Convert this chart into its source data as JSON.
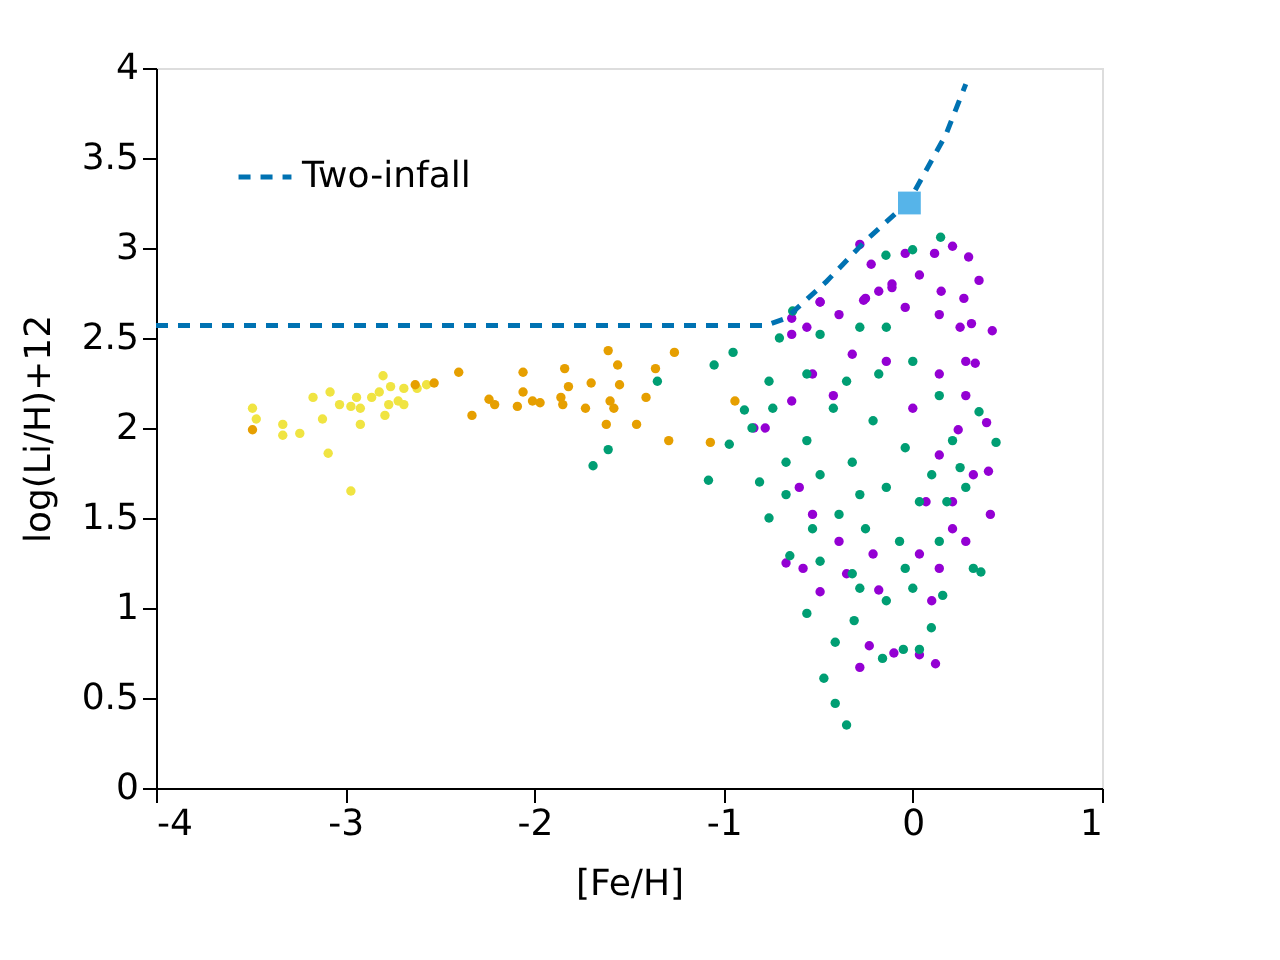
{
  "chart_data": {
    "type": "scatter",
    "xlabel": "[Fe/H]",
    "ylabel": "log(Li/H)+12",
    "xlim": [
      -4,
      1
    ],
    "xticks": [
      -4,
      -3,
      -2,
      -1,
      0,
      1
    ],
    "ylim": [
      0,
      4
    ],
    "yticks": [
      0,
      0.5,
      1,
      1.5,
      2,
      2.5,
      3,
      3.5,
      4
    ],
    "grid": false,
    "legend": "top left",
    "series": [
      {
        "marker": "circle",
        "color": "#f0e442",
        "x": [
          -3.49,
          -3.47,
          -3.33,
          -3.33,
          -3.24,
          -3.17,
          -3.12,
          -3.08,
          -3.09,
          -3.03,
          -2.97,
          -2.97,
          -2.94,
          -2.92,
          -2.92,
          -2.86,
          -2.82,
          -2.8,
          -2.79,
          -2.77,
          -2.76,
          -2.72,
          -2.69,
          -2.69,
          -2.62,
          -2.57
        ],
        "values": [
          2.11,
          2.05,
          2.02,
          1.96,
          1.97,
          2.17,
          2.05,
          2.2,
          1.86,
          2.13,
          1.65,
          2.12,
          2.17,
          2.11,
          2.02,
          2.17,
          2.2,
          2.29,
          2.07,
          2.13,
          2.23,
          2.15,
          2.22,
          2.13,
          2.22,
          2.24
        ]
      },
      {
        "marker": "circle",
        "color": "#e69f00",
        "x": [
          -3.49,
          -2.63,
          -2.53,
          -2.4,
          -2.33,
          -2.24,
          -2.21,
          -2.09,
          -2.06,
          -2.06,
          -2.01,
          -1.97,
          -1.86,
          -1.85,
          -1.84,
          -1.82,
          -1.73,
          -1.7,
          -1.62,
          -1.61,
          -1.6,
          -1.58,
          -1.56,
          -1.55,
          -1.46,
          -1.41,
          -1.36,
          -1.29,
          -1.26,
          -1.07,
          -0.94
        ],
        "values": [
          1.99,
          2.24,
          2.25,
          2.31,
          2.07,
          2.16,
          2.13,
          2.12,
          2.31,
          2.2,
          2.15,
          2.14,
          2.17,
          2.13,
          2.33,
          2.23,
          2.11,
          2.25,
          2.02,
          2.43,
          2.15,
          2.11,
          2.35,
          2.24,
          2.02,
          2.17,
          2.33,
          1.93,
          2.42,
          1.92,
          2.15
        ]
      },
      {
        "marker": "circle",
        "color": "#9400d3",
        "x": [
          -0.28,
          -0.22,
          -0.04,
          0.115,
          0.21,
          0.295,
          0.35,
          0.42,
          0.33,
          -0.49,
          -0.26,
          -0.18,
          -0.11,
          0.15,
          0.27,
          0.31,
          -0.64,
          -0.56,
          0.39,
          0.4,
          0.41,
          0.28,
          -0.67,
          -0.58,
          -0.49,
          -0.35,
          -0.23,
          -0.28,
          -0.1,
          0.035,
          0.12,
          -0.18,
          0.1,
          0.21,
          -0.84,
          -0.64,
          -0.39,
          -0.04,
          0.14,
          0.25,
          0.28,
          0.14,
          -0.14,
          -0.32,
          -0.53,
          -0.64,
          -0.42,
          0.0,
          0.28,
          0.24,
          0.32,
          0.14,
          0.07,
          0.21,
          -0.6,
          -0.53,
          -0.21,
          0.035,
          0.14,
          -0.39,
          -0.78,
          0.035,
          -0.11,
          -0.25,
          -0.49
        ],
        "values": [
          3.02,
          2.91,
          2.97,
          2.97,
          3.01,
          2.95,
          2.82,
          2.54,
          2.36,
          2.7,
          2.71,
          2.76,
          2.8,
          2.76,
          2.72,
          2.58,
          2.61,
          2.56,
          2.03,
          1.76,
          1.52,
          1.37,
          1.25,
          1.22,
          1.09,
          1.19,
          0.79,
          0.67,
          0.75,
          0.74,
          0.69,
          1.1,
          1.04,
          1.44,
          2.0,
          2.52,
          2.63,
          2.67,
          2.63,
          2.56,
          2.37,
          2.3,
          2.37,
          2.41,
          2.3,
          2.15,
          2.18,
          2.11,
          2.18,
          1.99,
          1.74,
          1.85,
          1.59,
          1.59,
          1.67,
          1.52,
          1.3,
          1.3,
          1.22,
          1.37,
          2.0,
          2.85,
          2.78,
          2.72,
          2.7
        ]
      },
      {
        "marker": "circle",
        "color": "#009e73",
        "x": [
          -1.69,
          -1.61,
          -1.35,
          -1.05,
          -0.95,
          -1.08,
          -0.97,
          0.147,
          -0.142,
          -0.001,
          -0.635,
          -0.705,
          -0.76,
          -0.89,
          0.44,
          0.35,
          0.32,
          0.36,
          -0.47,
          -0.41,
          -0.35,
          -0.41,
          -0.56,
          -0.31,
          -0.16,
          -0.05,
          0.035,
          0.098,
          0.158,
          -0.65,
          -0.76,
          -0.81,
          -0.85,
          -0.67,
          -0.49,
          -0.28,
          -0.14,
          0.0,
          0.14,
          0.28,
          0.21,
          0.14,
          0.0,
          -0.14,
          -0.28,
          -0.49,
          -0.56,
          -0.42,
          -0.21,
          -0.04,
          -0.32,
          -0.49,
          -0.14,
          0.035,
          -0.39,
          -0.25,
          -0.07,
          -0.56,
          -0.67,
          -0.74,
          -0.35,
          -0.18,
          0.1,
          -0.28,
          -0.04,
          -0.32,
          -0.53,
          0.18,
          0.25
        ],
        "values": [
          1.79,
          1.88,
          2.26,
          2.35,
          2.42,
          1.71,
          1.91,
          3.06,
          2.96,
          2.99,
          2.65,
          2.5,
          2.26,
          2.1,
          1.92,
          2.09,
          1.22,
          1.2,
          0.61,
          0.47,
          0.35,
          0.81,
          0.97,
          0.93,
          0.72,
          0.77,
          0.77,
          0.89,
          1.07,
          1.29,
          1.5,
          1.7,
          2.0,
          1.63,
          1.26,
          1.11,
          1.04,
          1.11,
          1.37,
          1.67,
          1.93,
          2.18,
          2.37,
          2.56,
          2.56,
          2.52,
          2.3,
          2.11,
          2.04,
          1.89,
          1.81,
          1.74,
          1.67,
          1.59,
          1.52,
          1.44,
          1.37,
          1.93,
          1.81,
          2.11,
          2.26,
          2.3,
          1.74,
          1.63,
          1.22,
          1.19,
          1.44,
          1.59,
          1.78
        ]
      },
      {
        "type": "line",
        "name": "Two-infall",
        "line_style": "dashed",
        "color": "#0072b2",
        "x": [
          -4,
          -0.776,
          -0.67,
          -0.46,
          -0.25,
          -0.02,
          0.175,
          0.28
        ],
        "values": [
          2.57,
          2.57,
          2.61,
          2.81,
          3.04,
          3.26,
          3.63,
          3.91
        ]
      },
      {
        "marker": "square",
        "color": "#56b4e9",
        "x": [
          -0.018
        ],
        "values": [
          3.25
        ]
      }
    ]
  }
}
